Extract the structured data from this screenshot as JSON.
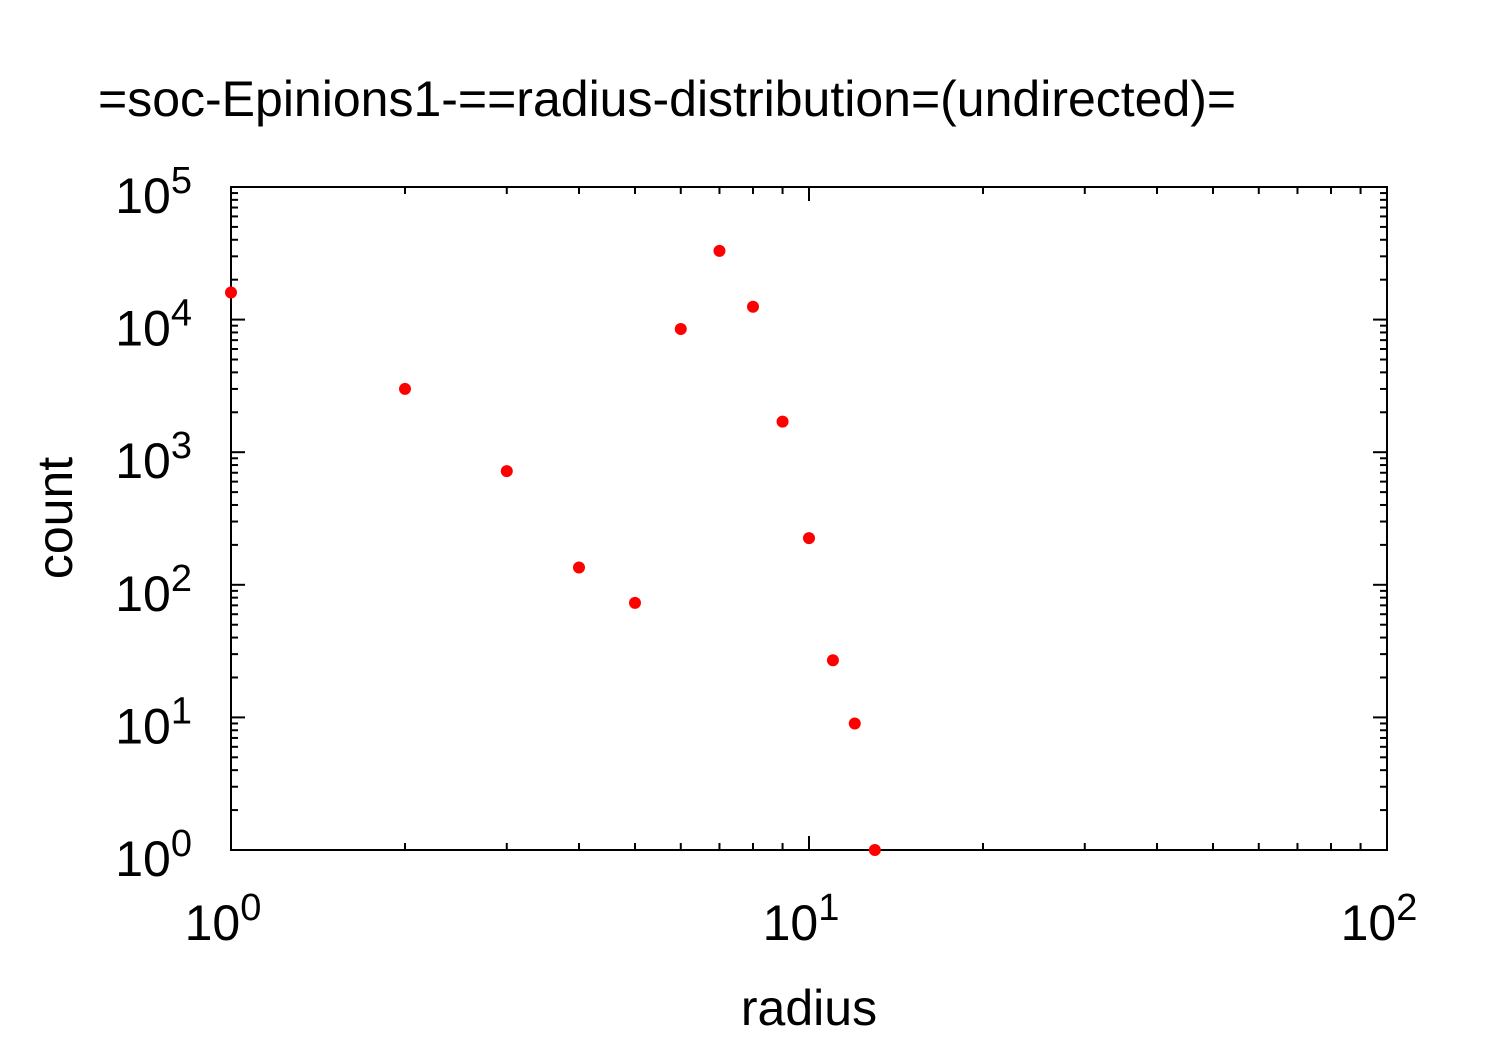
{
  "chart_data": {
    "type": "scatter",
    "title": "=soc-Epinions1-==radius-distribution=(undirected)=",
    "xlabel": "radius",
    "ylabel": "count",
    "xscale": "log",
    "yscale": "log",
    "xlim": [
      1,
      100
    ],
    "ylim": [
      1,
      100000
    ],
    "x_ticks": [
      {
        "value": 1,
        "base": "10",
        "exp": "0"
      },
      {
        "value": 10,
        "base": "10",
        "exp": "1"
      },
      {
        "value": 100,
        "base": "10",
        "exp": "2"
      }
    ],
    "y_ticks": [
      {
        "value": 1,
        "base": "10",
        "exp": "0"
      },
      {
        "value": 10,
        "base": "10",
        "exp": "1"
      },
      {
        "value": 100,
        "base": "10",
        "exp": "2"
      },
      {
        "value": 1000,
        "base": "10",
        "exp": "3"
      },
      {
        "value": 10000,
        "base": "10",
        "exp": "4"
      },
      {
        "value": 100000,
        "base": "10",
        "exp": "5"
      }
    ],
    "grid": false,
    "marker_color": "#ff0000",
    "points": [
      {
        "x": 1,
        "y": 16000
      },
      {
        "x": 2,
        "y": 3000
      },
      {
        "x": 3,
        "y": 720
      },
      {
        "x": 4,
        "y": 135
      },
      {
        "x": 5,
        "y": 73
      },
      {
        "x": 6,
        "y": 8500
      },
      {
        "x": 7,
        "y": 33000
      },
      {
        "x": 8,
        "y": 12500
      },
      {
        "x": 9,
        "y": 1700
      },
      {
        "x": 10,
        "y": 225
      },
      {
        "x": 11,
        "y": 27
      },
      {
        "x": 12,
        "y": 9
      },
      {
        "x": 13,
        "y": 1
      }
    ]
  }
}
